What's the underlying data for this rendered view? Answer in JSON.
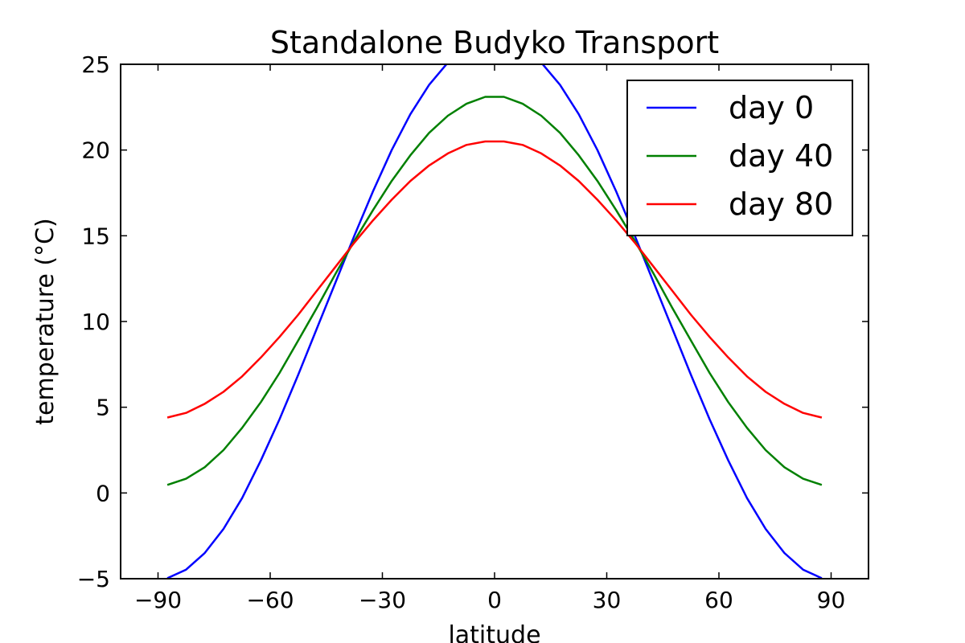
{
  "chart_data": {
    "type": "line",
    "title": "Standalone Budyko Transport",
    "xlabel": "latitude",
    "ylabel": "temperature (°C)",
    "xlim": [
      -100,
      100
    ],
    "ylim": [
      -5,
      25
    ],
    "xticks": [
      -90,
      -60,
      -30,
      0,
      30,
      60,
      90
    ],
    "yticks": [
      -5,
      0,
      5,
      10,
      15,
      20,
      25
    ],
    "xtick_labels": [
      "−90",
      "−60",
      "−30",
      "0",
      "30",
      "60",
      "90"
    ],
    "ytick_labels": [
      "−5",
      "0",
      "5",
      "10",
      "15",
      "20",
      "25"
    ],
    "grid": false,
    "legend_position": "top-right",
    "x": [
      -87.5,
      -82.5,
      -77.5,
      -72.5,
      -67.5,
      -62.5,
      -57.5,
      -52.5,
      -47.5,
      -42.5,
      -37.5,
      -32.5,
      -27.5,
      -22.5,
      -17.5,
      -12.5,
      -7.5,
      -2.5,
      2.5,
      7.5,
      12.5,
      17.5,
      22.5,
      27.5,
      32.5,
      37.5,
      42.5,
      47.5,
      52.5,
      57.5,
      62.5,
      67.5,
      72.5,
      77.5,
      82.5,
      87.5
    ],
    "series": [
      {
        "name": "day 0",
        "color": "#0000ff",
        "values": [
          -4.97,
          -4.47,
          -3.5,
          -2.1,
          -0.3,
          1.9,
          4.3,
          6.9,
          9.6,
          12.3,
          15.0,
          17.6,
          20.0,
          22.1,
          23.8,
          25.1,
          26.0,
          26.5,
          26.5,
          26.0,
          25.1,
          23.8,
          22.1,
          20.0,
          17.6,
          15.0,
          12.3,
          9.6,
          6.9,
          4.3,
          1.9,
          -0.3,
          -2.1,
          -3.5,
          -4.47,
          -4.97
        ]
      },
      {
        "name": "day 40",
        "color": "#008000",
        "values": [
          0.47,
          0.83,
          1.5,
          2.5,
          3.8,
          5.3,
          7.0,
          8.9,
          10.8,
          12.8,
          14.7,
          16.5,
          18.2,
          19.7,
          21.0,
          22.0,
          22.7,
          23.1,
          23.1,
          22.7,
          22.0,
          21.0,
          19.7,
          18.2,
          16.5,
          14.7,
          12.8,
          10.8,
          8.9,
          7.0,
          5.3,
          3.8,
          2.5,
          1.5,
          0.83,
          0.47
        ]
      },
      {
        "name": "day 80",
        "color": "#ff0000",
        "values": [
          4.4,
          4.67,
          5.2,
          5.9,
          6.8,
          7.9,
          9.1,
          10.4,
          11.8,
          13.2,
          14.6,
          15.9,
          17.1,
          18.2,
          19.1,
          19.8,
          20.3,
          20.5,
          20.5,
          20.3,
          19.8,
          19.1,
          18.2,
          17.1,
          15.9,
          14.6,
          13.2,
          11.8,
          10.4,
          9.1,
          7.9,
          6.8,
          5.9,
          5.2,
          4.67,
          4.4
        ]
      }
    ]
  }
}
